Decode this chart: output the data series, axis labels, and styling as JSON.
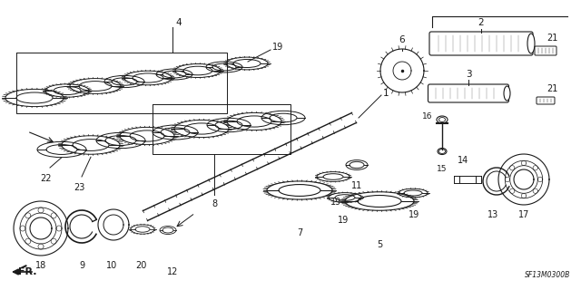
{
  "bg_color": "#ffffff",
  "fig_width": 6.4,
  "fig_height": 3.2,
  "dpi": 100,
  "diagram_code": "SF13M0300B",
  "line_color": "#1a1a1a"
}
